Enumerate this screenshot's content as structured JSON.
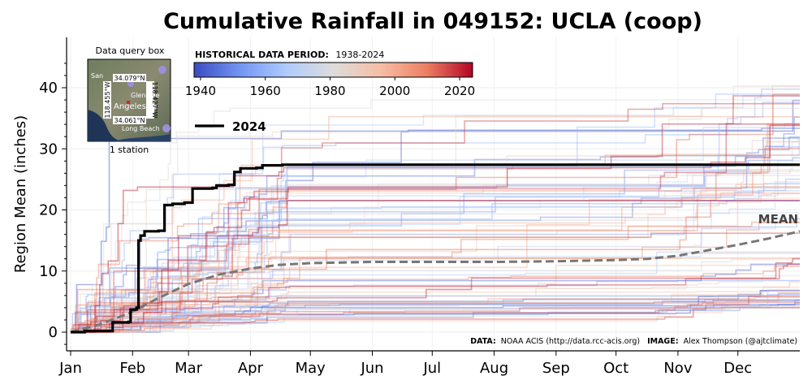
{
  "chart_data": {
    "type": "line",
    "title": "Cumulative Rainfall in 049152: UCLA (coop)",
    "ylabel": "Region Mean (inches)",
    "xlabel": "",
    "ylim": [
      -3,
      45.5
    ],
    "yticks": [
      0,
      10,
      20,
      30,
      40
    ],
    "months": [
      "Jan",
      "Feb",
      "Mar",
      "Apr",
      "May",
      "Jun",
      "Jul",
      "Aug",
      "Sep",
      "Oct",
      "Nov",
      "Dec"
    ],
    "month_start_days": [
      1,
      32,
      60,
      91,
      121,
      152,
      182,
      213,
      244,
      274,
      305,
      335
    ],
    "x_range_days": [
      1,
      366
    ],
    "colorbar": {
      "label": "HISTORICAL DATA PERIOD:",
      "range_text": "1938-2024",
      "min_year": 1938,
      "max_year": 2024,
      "ticks": [
        "1940",
        "1960",
        "1980",
        "2000",
        "2020"
      ],
      "colors": [
        "#3b4cc0",
        "#7396f5",
        "#b0cbfc",
        "#dddcdc",
        "#f6bfa6",
        "#ec8062",
        "#b40426"
      ]
    },
    "highlight_series": {
      "name": "2024",
      "color": "#000000",
      "points": [
        [
          1,
          0.0
        ],
        [
          8,
          0.2
        ],
        [
          20,
          0.2
        ],
        [
          22,
          1.6
        ],
        [
          30,
          1.7
        ],
        [
          31,
          3.7
        ],
        [
          34,
          4.0
        ],
        [
          35,
          15.0
        ],
        [
          36,
          15.8
        ],
        [
          38,
          16.5
        ],
        [
          45,
          16.6
        ],
        [
          48,
          20.8
        ],
        [
          52,
          21.0
        ],
        [
          58,
          21.2
        ],
        [
          62,
          23.5
        ],
        [
          72,
          23.6
        ],
        [
          74,
          24.0
        ],
        [
          80,
          24.1
        ],
        [
          83,
          26.2
        ],
        [
          86,
          26.8
        ],
        [
          94,
          26.9
        ],
        [
          97,
          27.3
        ],
        [
          107,
          27.4
        ],
        [
          366,
          27.4
        ]
      ]
    },
    "mean_series": {
      "name": "MEAN",
      "color": "#777777",
      "points": [
        [
          1,
          0.0
        ],
        [
          15,
          1.2
        ],
        [
          31,
          3.2
        ],
        [
          45,
          5.6
        ],
        [
          60,
          7.9
        ],
        [
          75,
          9.4
        ],
        [
          91,
          10.4
        ],
        [
          105,
          11.0
        ],
        [
          121,
          11.3
        ],
        [
          152,
          11.5
        ],
        [
          182,
          11.5
        ],
        [
          213,
          11.5
        ],
        [
          244,
          11.6
        ],
        [
          274,
          11.8
        ],
        [
          290,
          12.0
        ],
        [
          305,
          12.5
        ],
        [
          320,
          13.4
        ],
        [
          335,
          14.3
        ],
        [
          350,
          15.3
        ],
        [
          366,
          16.5
        ]
      ]
    },
    "historical_years_count": 86
  },
  "inset": {
    "title": "Data query box",
    "lat_top": "34.079°N",
    "lat_bottom": "34.061°N",
    "lon_left": "118.455°W",
    "lon_right": "118.427°W",
    "station_count": "1 station",
    "map_labels": [
      "San",
      "Glendale",
      "Angeles",
      "Long Beach"
    ]
  },
  "legend": {
    "label": "2024",
    "mean_label": "MEAN"
  },
  "credits": {
    "data_label": "DATA:",
    "data_text": "NOAA ACIS (http://data.rcc-acis.org)",
    "image_label": "IMAGE:",
    "image_text": "Alex Thompson (@ajtclimate)"
  }
}
